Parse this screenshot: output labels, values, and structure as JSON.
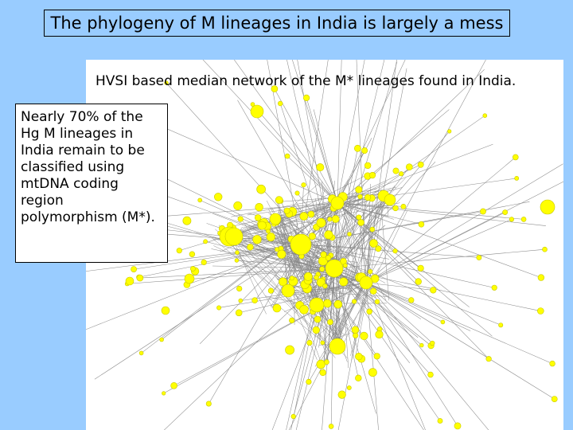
{
  "title": "The phylogeny of M lineages in India is largely a mess",
  "network": {
    "caption": "HVSI based median network of the M* lineages found in India.",
    "node_color": "#ffff00",
    "node_stroke": "#c8c800",
    "edge_color": "#8a8a8a"
  },
  "note": {
    "text": "Nearly 70% of the Hg M lineages in India remain to be classified using mtDNA coding region polymorphism (M*)."
  }
}
